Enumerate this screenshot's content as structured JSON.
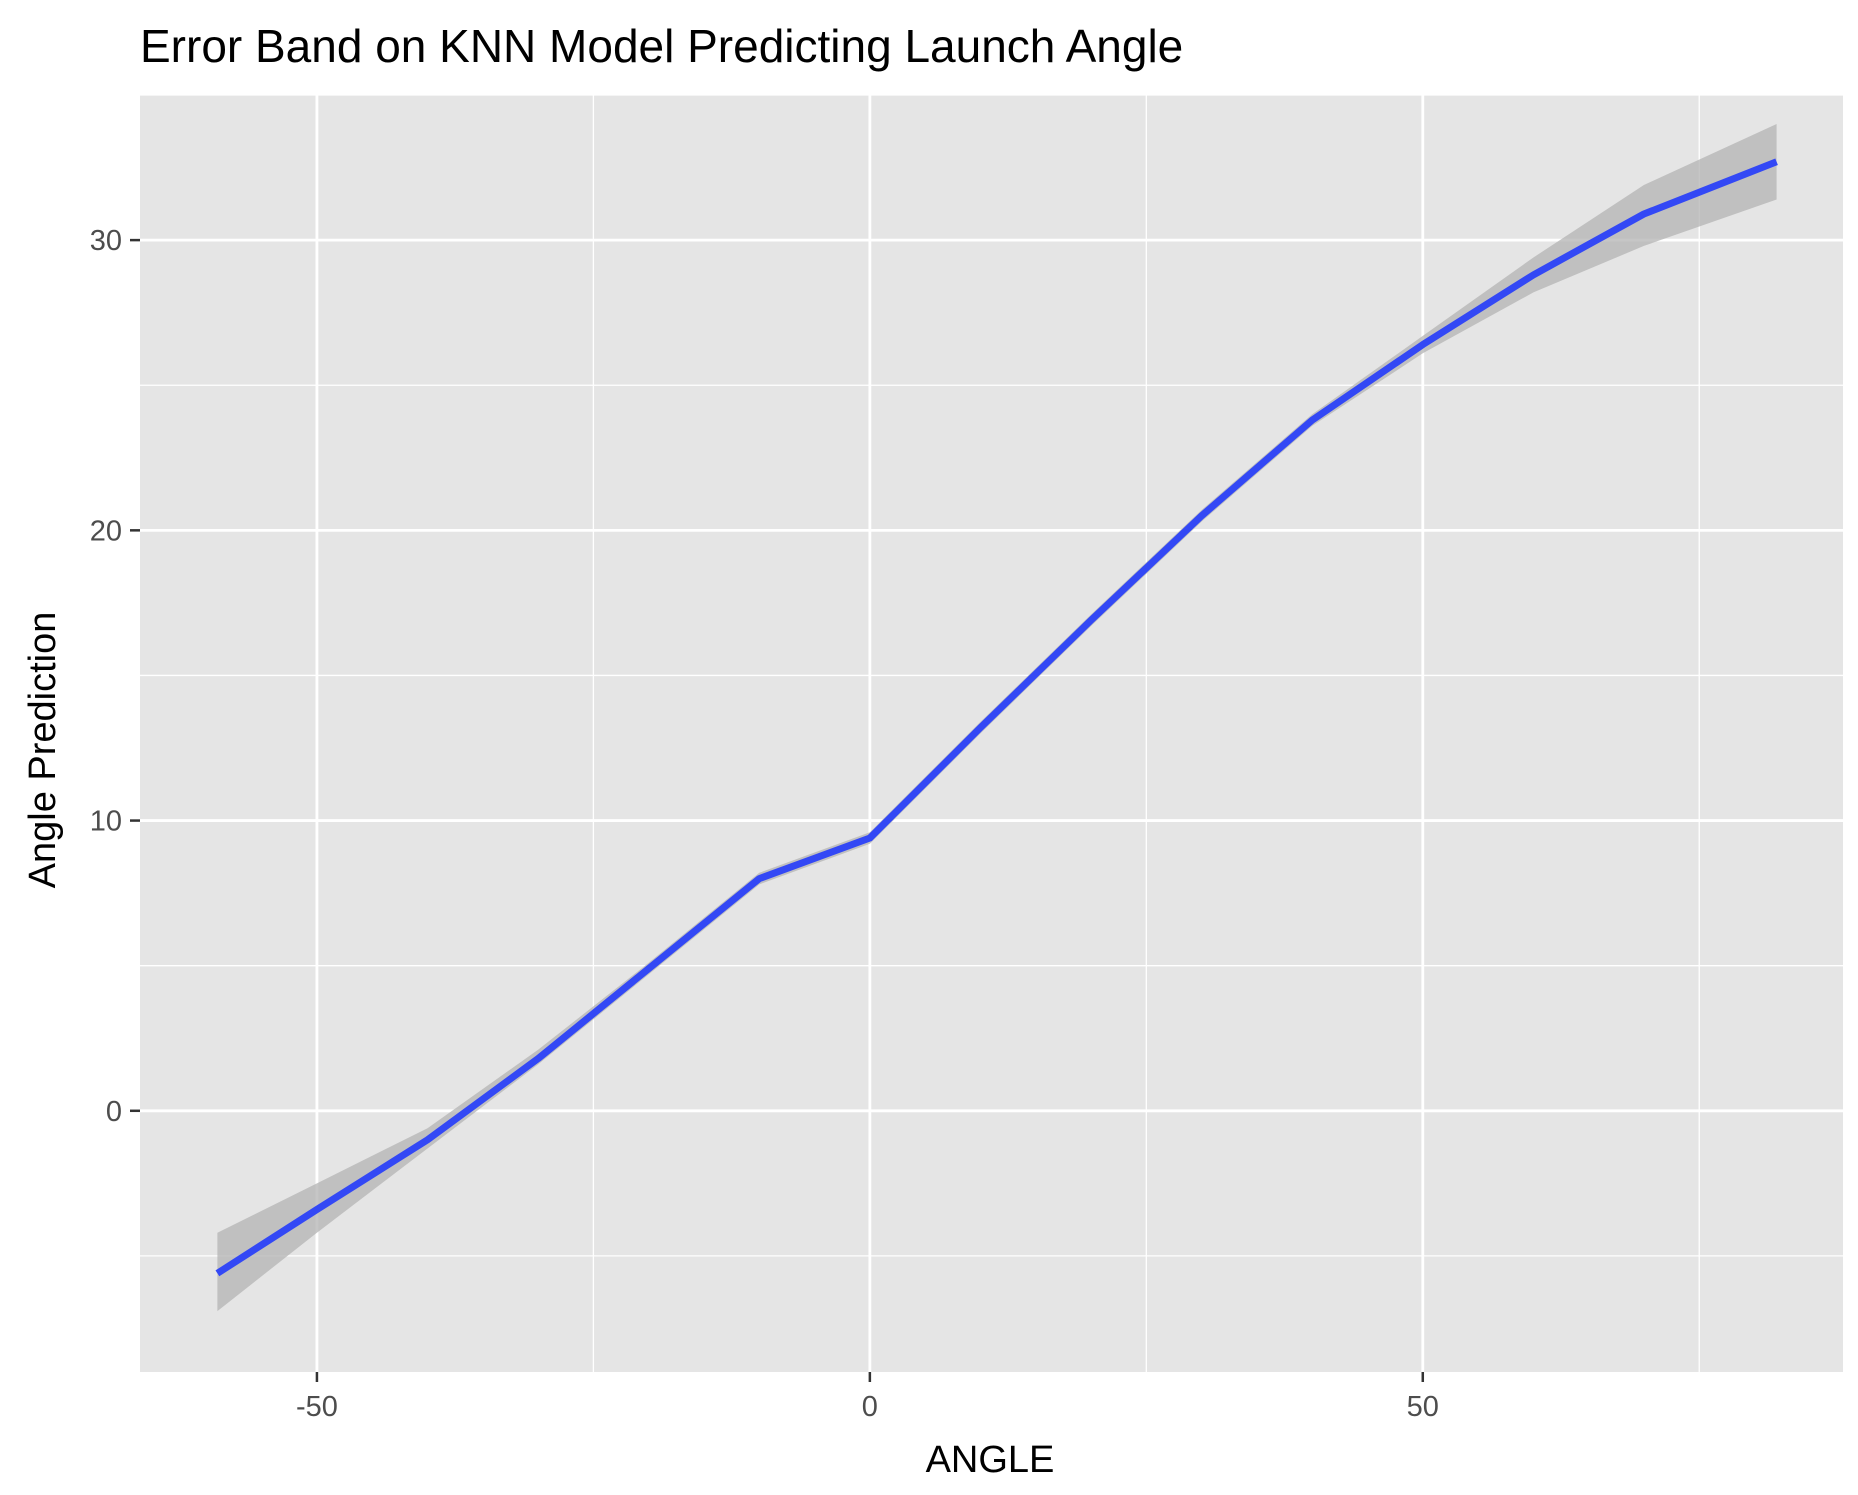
{
  "chart_data": {
    "type": "line",
    "title": "Error Band on KNN Model Predicting Launch Angle",
    "xlabel": "ANGLE",
    "ylabel": "Angle Prediction",
    "xlim": [
      -66,
      88
    ],
    "ylim": [
      -9,
      35
    ],
    "x_ticks": [
      -50,
      0,
      50
    ],
    "x_tick_labels": [
      "-50",
      "0",
      "50"
    ],
    "y_ticks": [
      0,
      10,
      20,
      30
    ],
    "y_tick_labels": [
      "0",
      "10",
      "20",
      "30"
    ],
    "x_minor_ticks": [
      -75,
      -25,
      25,
      75
    ],
    "y_minor_ticks": [
      -5,
      5,
      15,
      25,
      35
    ],
    "grid": true,
    "legend": "none",
    "colors": {
      "panel_background": "#e5e5e5",
      "grid": "#ffffff",
      "line": "#3348f5",
      "band": "#b3b3b3",
      "tick": "#333333"
    },
    "series": [
      {
        "x": [
          -59,
          -50,
          -40,
          -30,
          -20,
          -10,
          0,
          10,
          20,
          30,
          40,
          50,
          60,
          70,
          82
        ],
        "y": [
          -5.6,
          -3.4,
          -1.0,
          1.8,
          4.9,
          8.0,
          9.4,
          13.2,
          16.9,
          20.5,
          23.8,
          26.4,
          28.8,
          30.9,
          32.7
        ],
        "lower": [
          -6.9,
          -4.2,
          -1.3,
          1.6,
          4.7,
          7.8,
          9.2,
          13.0,
          16.7,
          20.3,
          23.6,
          26.1,
          28.2,
          29.8,
          31.4
        ],
        "upper": [
          -4.2,
          -2.5,
          -0.6,
          2.1,
          5.1,
          8.2,
          9.6,
          13.4,
          17.1,
          20.7,
          24.0,
          26.7,
          29.4,
          31.9,
          34.0
        ]
      }
    ]
  }
}
